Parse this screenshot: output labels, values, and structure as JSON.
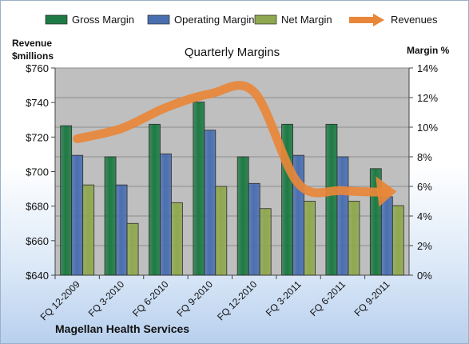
{
  "chart_data": {
    "type": "bar",
    "title": "Quarterly Margins",
    "left_axis_label": [
      "Revenue",
      "$millions"
    ],
    "right_axis_label": "Margin %",
    "footer": "Magellan Health Services",
    "categories": [
      "FQ 12-2009",
      "FQ 3-2010",
      "FQ 6-2010",
      "FQ 9-2010",
      "FQ 12-2010",
      "FQ 3-2011",
      "FQ 6-2011",
      "FQ 9-2011"
    ],
    "left_axis": {
      "min": 640,
      "max": 760,
      "ticks": [
        "$640",
        "$660",
        "$680",
        "$700",
        "$720",
        "$740",
        "$760"
      ]
    },
    "right_axis": {
      "min": 0,
      "max": 14,
      "ticks": [
        "0%",
        "2%",
        "4%",
        "6%",
        "8%",
        "10%",
        "12%",
        "14%"
      ]
    },
    "series": [
      {
        "name": "Gross Margin",
        "axis": "right",
        "color": "#1e7a44",
        "values": [
          10.1,
          8.0,
          10.2,
          11.7,
          8.0,
          10.2,
          10.2,
          7.2
        ]
      },
      {
        "name": "Operating Margin",
        "axis": "right",
        "color": "#4a6fb0",
        "values": [
          8.1,
          6.1,
          8.2,
          9.8,
          6.2,
          8.1,
          8.0,
          5.3
        ]
      },
      {
        "name": "Net Margin",
        "axis": "right",
        "color": "#8fa84f",
        "values": [
          6.1,
          3.5,
          4.9,
          6.0,
          4.5,
          5.0,
          5.0,
          4.7
        ]
      },
      {
        "name": "Revenues",
        "axis": "left",
        "color": "#e8873a",
        "values": [
          719,
          725,
          737,
          745,
          746,
          693,
          689,
          688
        ]
      }
    ],
    "grid": true,
    "legend_position": "top"
  }
}
